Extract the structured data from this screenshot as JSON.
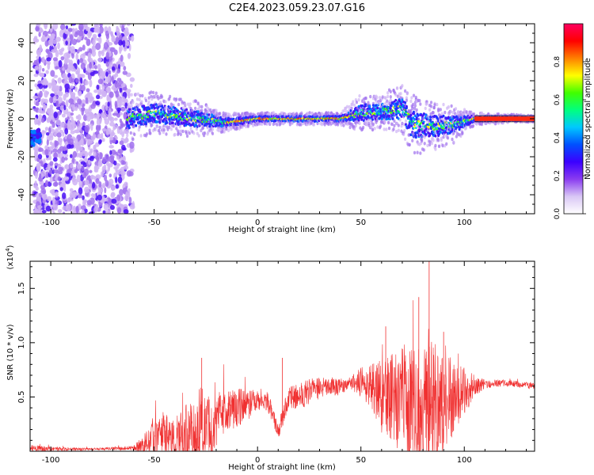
{
  "title": "C2E4.2023.059.23.07.G16",
  "chart_data": [
    {
      "type": "heatmap",
      "xlabel": "Height of straight line (km)",
      "ylabel": "Frequency (Hz)",
      "xlim": [
        -110,
        134
      ],
      "ylim": [
        -50,
        50
      ],
      "xticks": [
        -100,
        -50,
        0,
        50,
        100
      ],
      "yticks": [
        -40,
        -20,
        0,
        20,
        40
      ],
      "colorbar": {
        "label": "Normalized spectral amplitude",
        "range": [
          0.0,
          1.0
        ],
        "ticks": [
          "0.0",
          "0.2",
          "0.4",
          "0.6",
          "0.8"
        ],
        "colors": [
          "#ffffff",
          "#d9c7f5",
          "#8a3cf0",
          "#3b00ff",
          "#0050ff",
          "#00c8ff",
          "#00ff80",
          "#40ff00",
          "#ffff00",
          "#ff8000",
          "#ff0000",
          "#ff0060"
        ]
      },
      "ridge": {
        "note_x": [
          -63,
          -50,
          -30,
          -15,
          0,
          20,
          40,
          50,
          60,
          70,
          75,
          85,
          95,
          105,
          134
        ],
        "center_hz": [
          0,
          3,
          0,
          -2,
          0,
          0,
          0,
          3,
          4,
          5,
          -3,
          -4,
          -3,
          0,
          0
        ],
        "spread_hz": [
          8,
          7,
          6,
          3,
          2,
          2,
          2,
          6,
          6,
          8,
          10,
          8,
          6,
          2,
          1
        ]
      }
    },
    {
      "type": "line",
      "xlabel": "Height of straight line (km)",
      "ylabel": "SNR (10 * v/v)",
      "multiplier": "(x10",
      "multiplier_exp": "4",
      "multiplier_close": ")",
      "xlim": [
        -110,
        134
      ],
      "ylim": [
        0,
        1.75
      ],
      "xticks": [
        -100,
        -50,
        0,
        50,
        100
      ],
      "yticks": [
        0.5,
        1.0,
        1.5
      ],
      "ytick_labels": [
        "0.5",
        "1.0",
        "1.5"
      ],
      "color": "#f03030",
      "envelope": {
        "x": [
          -110,
          -100,
          -80,
          -60,
          -55,
          -50,
          -45,
          -40,
          -35,
          -30,
          -27,
          -25,
          -22,
          -20,
          -15,
          -10,
          -5,
          0,
          5,
          10,
          15,
          20,
          25,
          30,
          40,
          45,
          50,
          55,
          60,
          65,
          70,
          75,
          80,
          85,
          90,
          95,
          100,
          105,
          110,
          120,
          134
        ],
        "base": [
          0.03,
          0.02,
          0.02,
          0.03,
          0.06,
          0.12,
          0.15,
          0.12,
          0.15,
          0.12,
          0.2,
          0.2,
          0.15,
          0.3,
          0.38,
          0.4,
          0.42,
          0.47,
          0.45,
          0.18,
          0.5,
          0.5,
          0.55,
          0.58,
          0.6,
          0.62,
          0.64,
          0.6,
          0.5,
          0.5,
          0.45,
          0.4,
          0.4,
          0.42,
          0.45,
          0.5,
          0.55,
          0.6,
          0.62,
          0.63,
          0.6
        ],
        "amp": [
          0.03,
          0.02,
          0.01,
          0.02,
          0.1,
          0.18,
          0.2,
          0.18,
          0.28,
          0.35,
          0.45,
          0.35,
          0.3,
          0.28,
          0.2,
          0.18,
          0.15,
          0.1,
          0.1,
          0.08,
          0.1,
          0.12,
          0.12,
          0.1,
          0.08,
          0.05,
          0.15,
          0.2,
          0.35,
          0.4,
          0.5,
          0.55,
          0.6,
          0.6,
          0.45,
          0.35,
          0.25,
          0.1,
          0.04,
          0.03,
          0.03
        ]
      },
      "peaks": [
        {
          "x": -27,
          "y": 0.86
        },
        {
          "x": 12,
          "y": 0.86
        },
        {
          "x": 62,
          "y": 1.15
        },
        {
          "x": 78,
          "y": 1.42
        },
        {
          "x": 83,
          "y": 1.75
        },
        {
          "x": 90,
          "y": 1.1
        }
      ]
    }
  ]
}
